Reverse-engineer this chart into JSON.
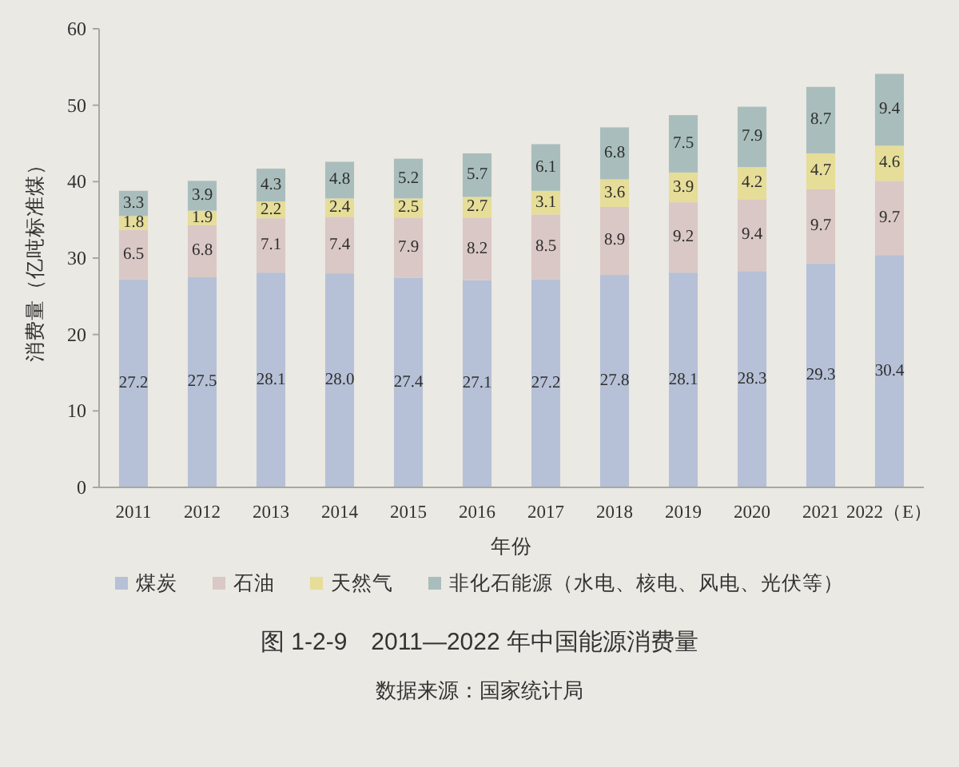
{
  "chart_data": {
    "type": "bar",
    "stacked": true,
    "title": "图 1-2-9　2011—2022 年中国能源消费量",
    "xlabel": "年份",
    "ylabel": "消费量（亿吨标准煤）",
    "categories": [
      "2011",
      "2012",
      "2013",
      "2014",
      "2015",
      "2016",
      "2017",
      "2018",
      "2019",
      "2020",
      "2021",
      "2022（E）"
    ],
    "series": [
      {
        "name": "煤炭",
        "color": "#b6c1d7",
        "values": [
          27.2,
          27.5,
          28.1,
          28.0,
          27.4,
          27.1,
          27.2,
          27.8,
          28.1,
          28.3,
          29.3,
          30.4
        ],
        "value_labels": [
          "27.2",
          "27.5",
          "28.1",
          "28.0",
          "27.4",
          "27.1",
          "27.2",
          "27.8",
          "28.1",
          "28.3",
          "29.3",
          "30.4"
        ]
      },
      {
        "name": "石油",
        "color": "#dac8c6",
        "values": [
          6.5,
          6.8,
          7.1,
          7.4,
          7.9,
          8.2,
          8.5,
          8.9,
          9.2,
          9.4,
          9.7,
          9.7
        ],
        "value_labels": [
          "6.5",
          "6.8",
          "7.1",
          "7.4",
          "7.9",
          "8.2",
          "8.5",
          "8.9",
          "9.2",
          "9.4",
          "9.7",
          "9.7"
        ]
      },
      {
        "name": "天然气",
        "color": "#e6dd98",
        "values": [
          1.8,
          1.9,
          2.2,
          2.4,
          2.5,
          2.7,
          3.1,
          3.6,
          3.9,
          4.2,
          4.7,
          4.6
        ],
        "value_labels": [
          "1.8",
          "1.9",
          "2.2",
          "2.4",
          "2.5",
          "2.7",
          "3.1",
          "3.6",
          "3.9",
          "4.2",
          "4.7",
          "4.6"
        ]
      },
      {
        "name": "非化石能源（水电、核电、风电、光伏等）",
        "color": "#a9bebc",
        "values": [
          3.3,
          3.9,
          4.3,
          4.8,
          5.2,
          5.7,
          6.1,
          6.8,
          7.5,
          7.9,
          8.7,
          9.4
        ],
        "value_labels": [
          "3.3",
          "3.9",
          "4.3",
          "4.8",
          "5.2",
          "5.7",
          "6.1",
          "6.8",
          "7.5",
          "7.9",
          "8.7",
          "9.4"
        ]
      }
    ],
    "ylim": [
      0,
      60
    ],
    "yticks": [
      0,
      10,
      20,
      30,
      40,
      50,
      60
    ],
    "legend": "bottom",
    "annotations": [
      "数据来源：国家统计局"
    ]
  }
}
